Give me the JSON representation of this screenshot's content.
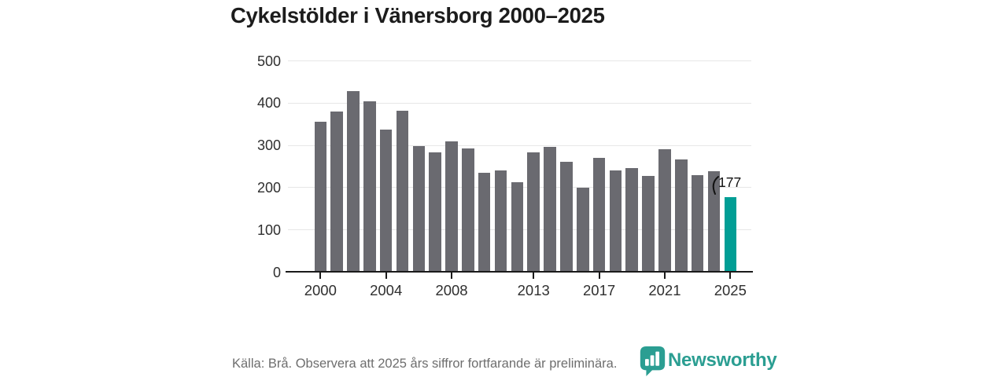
{
  "chart_data": {
    "type": "bar",
    "title": "Cykelstölder i Vänersborg 2000–2025",
    "categories": [
      "2000",
      "2001",
      "2002",
      "2003",
      "2004",
      "2005",
      "2006",
      "2007",
      "2008",
      "2009",
      "2010",
      "2011",
      "2012",
      "2013",
      "2014",
      "2015",
      "2016",
      "2017",
      "2018",
      "2019",
      "2020",
      "2021",
      "2022",
      "2023",
      "2024",
      "2025"
    ],
    "values": [
      356,
      381,
      429,
      405,
      337,
      382,
      298,
      284,
      309,
      293,
      236,
      241,
      213,
      283,
      296,
      261,
      200,
      271,
      240,
      246,
      228,
      291,
      267,
      229,
      239,
      177
    ],
    "xlabel": "",
    "ylabel": "",
    "ylim": [
      0,
      500
    ],
    "yticks": [
      0,
      100,
      200,
      300,
      400,
      500
    ],
    "xtick_labels": [
      "2000",
      "2004",
      "2008",
      "2013",
      "2017",
      "2021",
      "2025"
    ],
    "grid": "horizontal-light",
    "legend": "none",
    "bar_color": "#6a6a70",
    "highlight": {
      "category": "2025",
      "color": "#019e95",
      "label": "177"
    }
  },
  "footer": {
    "source": "Källa: Brå. Observera att 2025 års siffror fortfarande är preliminära.",
    "brand": "Newsworthy"
  },
  "colors": {
    "background": "#ffffff",
    "title_text": "#1c1c1c",
    "axis_text": "#2f2f2f",
    "gridline": "#e7e7e7",
    "baseline": "#1a1a1a",
    "bar_gray": "#6a6a70",
    "accent_teal": "#019e95",
    "brand_teal": "#2b9e92",
    "source_text": "#6e6e6e"
  },
  "icons": {
    "brand_logo": "newsworthy-pin-barchart-icon"
  }
}
